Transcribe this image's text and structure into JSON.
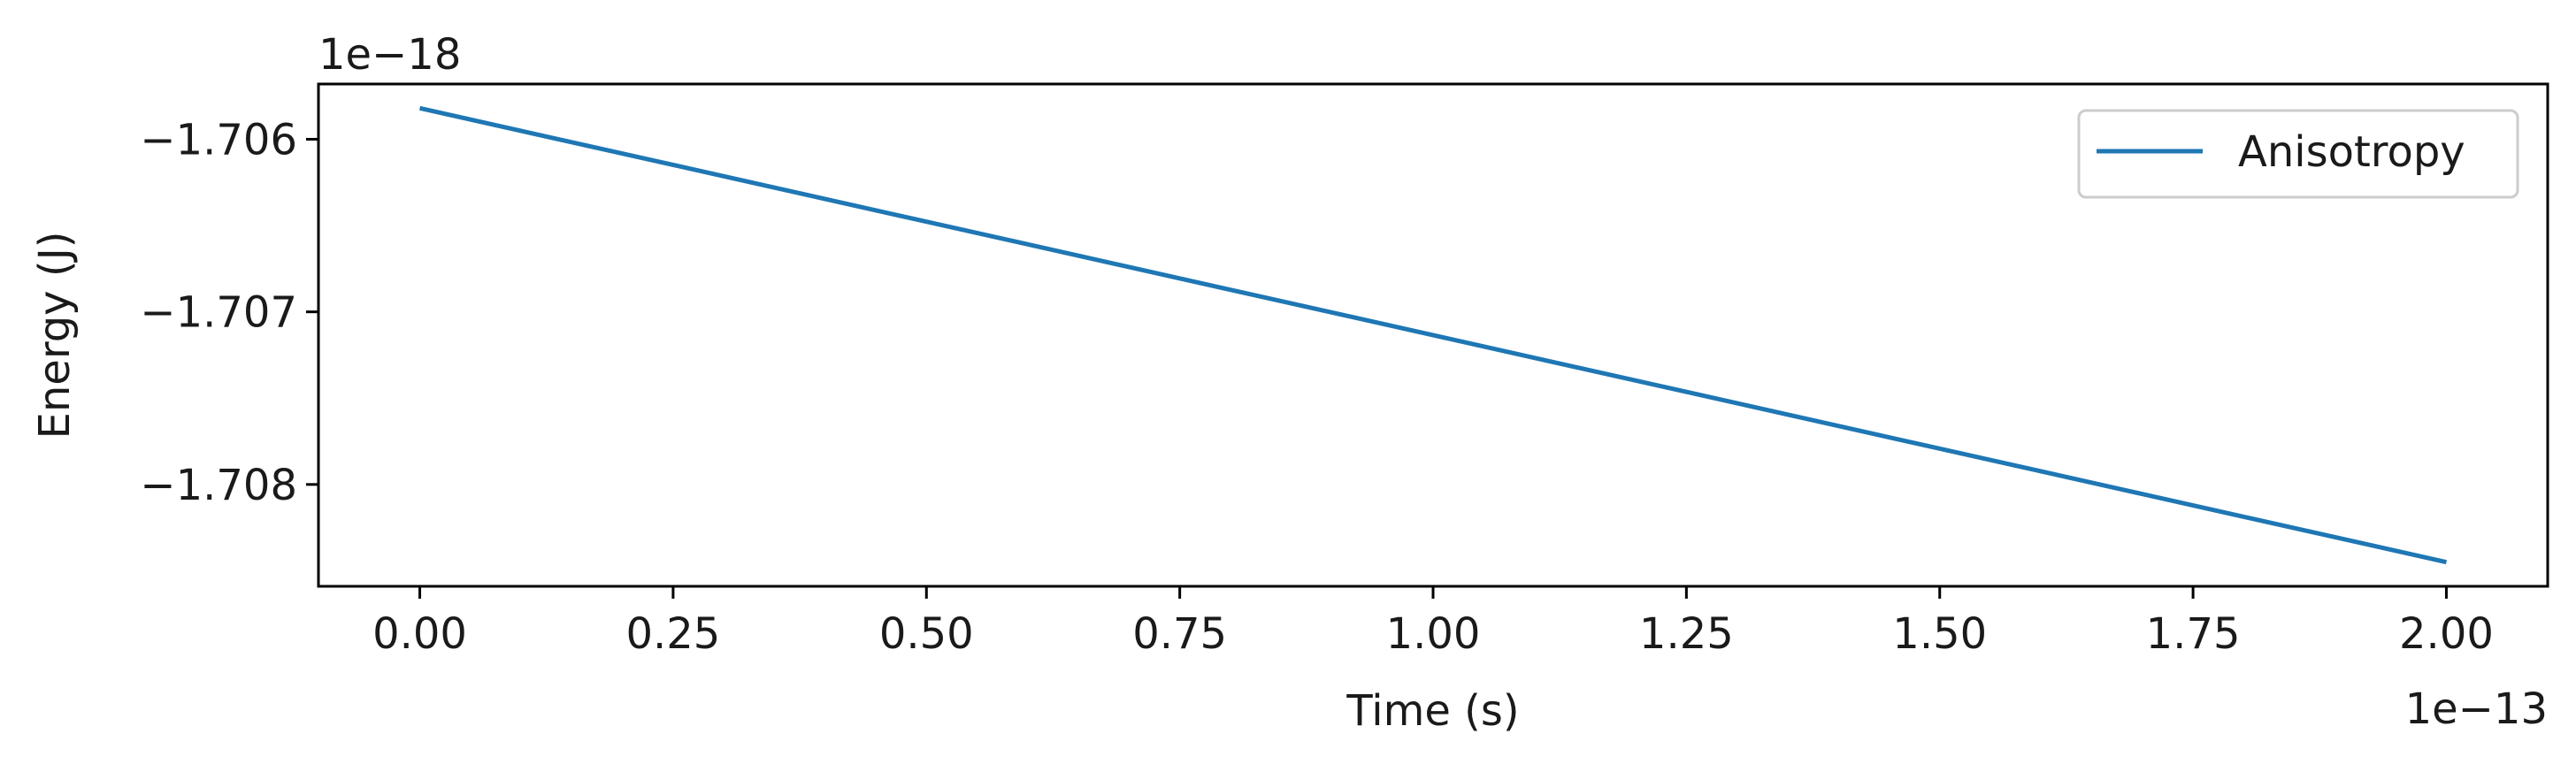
{
  "chart_data": {
    "type": "line",
    "xlabel": "Time (s)",
    "ylabel": "Energy (J)",
    "x_offset_label": "1e−13",
    "y_offset_label": "1e−18",
    "x_scale": 1e-13,
    "y_scale": 1e-18,
    "xlim": [
      -0.1,
      2.1
    ],
    "ylim": [
      -1.70859,
      -1.70568
    ],
    "x_ticks": [
      0.0,
      0.25,
      0.5,
      0.75,
      1.0,
      1.25,
      1.5,
      1.75,
      2.0
    ],
    "x_tick_labels": [
      "0.00",
      "0.25",
      "0.50",
      "0.75",
      "1.00",
      "1.25",
      "1.50",
      "1.75",
      "2.00"
    ],
    "y_ticks": [
      -1.706,
      -1.707,
      -1.708
    ],
    "y_tick_labels": [
      "−1.706",
      "−1.707",
      "−1.708"
    ],
    "grid": false,
    "legend_position": "top-right",
    "series": [
      {
        "name": "Anisotropy",
        "color": "#1f77b4",
        "x": [
          0.0,
          2.0
        ],
        "y": [
          -1.70582,
          -1.70845
        ]
      }
    ]
  }
}
